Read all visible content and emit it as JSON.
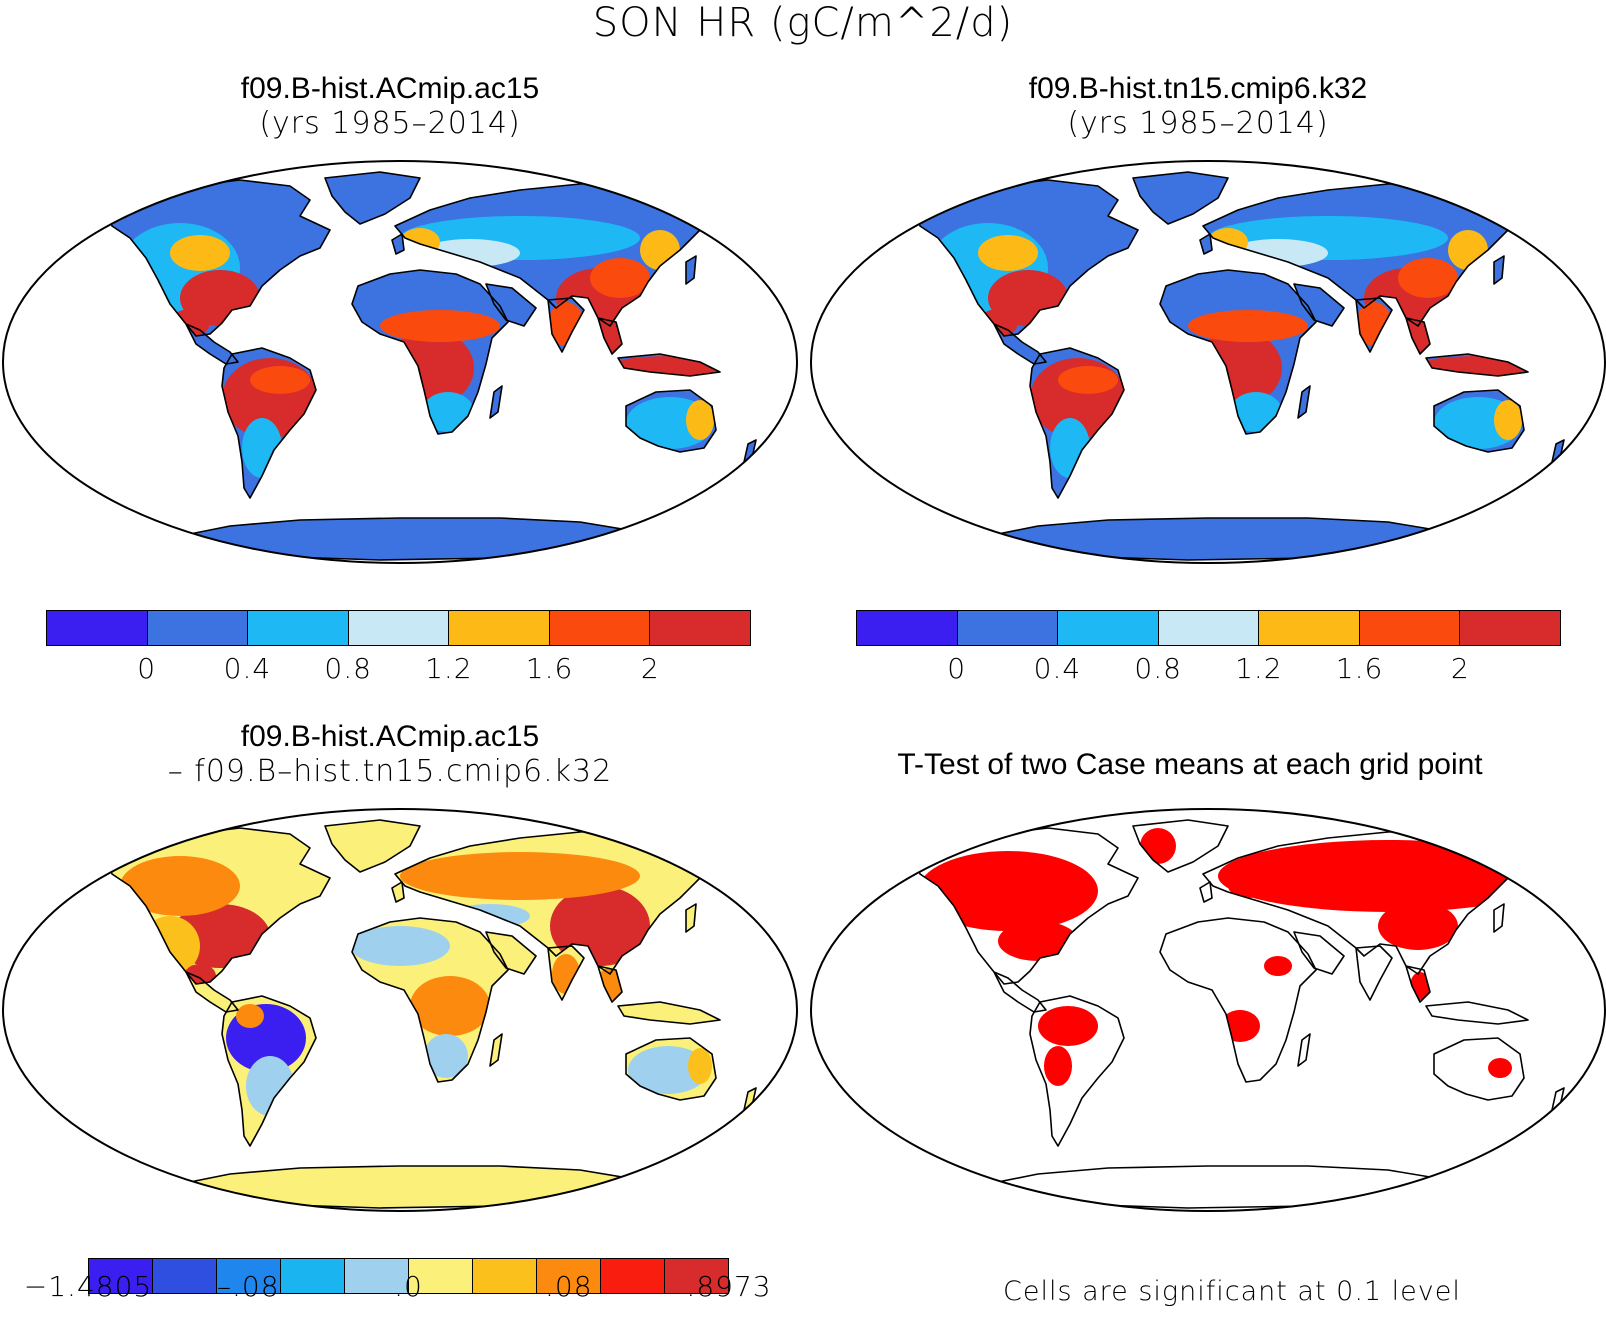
{
  "main_title": "SON HR (gC/m^2/d)",
  "panels": {
    "top_left": {
      "title_line1": "f09.B-hist.ACmip.ac15",
      "title_line2": "(yrs 1985–2014)"
    },
    "top_right": {
      "title_line1": "f09.B-hist.tn15.cmip6.k32",
      "title_line2": "(yrs 1985–2014)"
    },
    "bottom_left": {
      "title_line1": "f09.B-hist.ACmip.ac15",
      "title_line2": "– f09.B–hist.tn15.cmip6.k32"
    },
    "bottom_right": {
      "title_line1": "T-Test of two Case means at each grid point",
      "note": "Cells are significant at 0.1 level"
    }
  },
  "colorbar_abs": {
    "colors": [
      "#3b1ff0",
      "#3c73e0",
      "#1eb8f5",
      "#c8e8f6",
      "#fdba17",
      "#fb4a0e",
      "#d82b2b"
    ],
    "labels": [
      "0",
      "0.4",
      "0.8",
      "1.2",
      "1.6",
      "2"
    ]
  },
  "colorbar_diff": {
    "colors": [
      "#3b1ff0",
      "#2e4fe0",
      "#1f86ee",
      "#1ab4f0",
      "#9fd1ee",
      "#fbf17a",
      "#fcc01c",
      "#fb8a0e",
      "#f81d0e",
      "#d82b2b"
    ],
    "labels": [
      "−1.4805",
      "–.08",
      ".0",
      ".08",
      ".8973"
    ]
  },
  "map_colors": {
    "ocean": "#ffffff",
    "abs_low": "#3c73e0",
    "abs_mid": "#1eb8f5",
    "abs_light": "#c8e8f6",
    "abs_warm": "#fdba17",
    "abs_orange": "#fb4a0e",
    "abs_high": "#d82b2b",
    "diff_base": "#fbf17a",
    "diff_warm": "#fcc01c",
    "diff_orange": "#fb8a0e",
    "diff_red": "#d82b2b",
    "diff_lightblue": "#9fd1ee",
    "diff_blue": "#3b1ff0",
    "sig": "#ff0000"
  }
}
